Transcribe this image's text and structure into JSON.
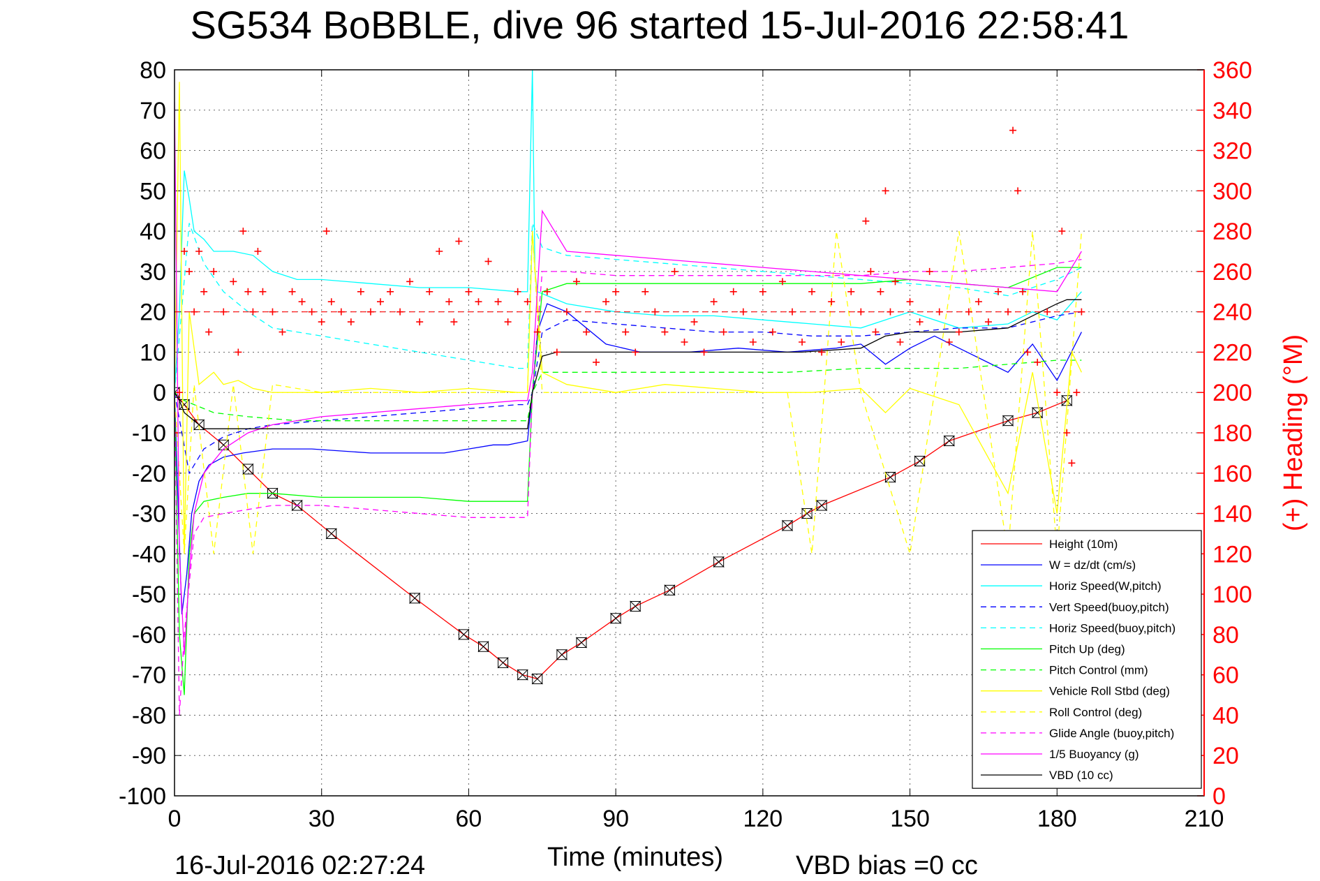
{
  "chart_data": {
    "type": "line",
    "title": "SG534 BoBBLE, dive 96 started 15-Jul-2016 22:58:41",
    "xlabel": "Time (minutes)",
    "ylabel": "",
    "y2label": "(+) Heading (°M)",
    "xlim": [
      0,
      210
    ],
    "ylim": [
      -100,
      80
    ],
    "y2lim": [
      0,
      360
    ],
    "xticks": [
      "0",
      "30",
      "60",
      "90",
      "120",
      "150",
      "180",
      "210"
    ],
    "yticks": [
      "80",
      "70",
      "60",
      "50",
      "40",
      "30",
      "20",
      "10",
      "0",
      "-10",
      "-20",
      "-30",
      "-40",
      "-50",
      "-60",
      "-70",
      "-80",
      "-90",
      "-100"
    ],
    "y2ticks": [
      "360",
      "340",
      "320",
      "300",
      "280",
      "260",
      "240",
      "220",
      "200",
      "180",
      "160",
      "140",
      "120",
      "100",
      "80",
      "60",
      "40",
      "20",
      "0"
    ],
    "grid": true,
    "legend_position": "bottom-right",
    "bottom_left_text": "16-Jul-2016 02:27:24",
    "bottom_right_text": "VBD bias =0 cc",
    "series": [
      {
        "name": "Height (10m)",
        "color": "#ff0000",
        "style": "solid",
        "marker": "hourglass",
        "x": [
          0,
          2,
          5,
          10,
          15,
          20,
          25,
          32,
          49,
          59,
          63,
          67,
          71,
          74,
          79,
          83,
          90,
          94,
          101,
          111,
          125,
          129,
          132,
          146,
          152,
          158,
          170,
          176,
          182
        ],
        "y": [
          0,
          -3,
          -8,
          -13,
          -19,
          -25,
          -28,
          -35,
          -51,
          -60,
          -63,
          -67,
          -70,
          -71,
          -65,
          -62,
          -56,
          -53,
          -49,
          -42,
          -33,
          -30,
          -28,
          -21,
          -17,
          -12,
          -7,
          -5,
          -2
        ]
      },
      {
        "name": "W = dz/dt (cm/s)",
        "color": "#0000ff",
        "style": "solid",
        "x": [
          0,
          0.8,
          1.5,
          2.5,
          3.5,
          5,
          7,
          10,
          14,
          20,
          28,
          40,
          55,
          60,
          65,
          68,
          72,
          73,
          74,
          76,
          80,
          88,
          95,
          105,
          115,
          125,
          135,
          140,
          145,
          150,
          155,
          160,
          165,
          170,
          175,
          180,
          185
        ],
        "y": [
          0,
          -30,
          -55,
          -45,
          -30,
          -22,
          -18,
          -16,
          -15,
          -14,
          -14,
          -15,
          -15,
          -14,
          -13,
          -13,
          -12,
          0,
          15,
          22,
          20,
          12,
          10,
          10,
          11,
          10,
          11,
          12,
          7,
          11,
          14,
          11,
          8,
          5,
          12,
          3,
          15
        ]
      },
      {
        "name": "Horiz Speed(W,pitch)",
        "color": "#00ffff",
        "style": "solid",
        "x": [
          0,
          1,
          2,
          3,
          4,
          6,
          8,
          12,
          16,
          20,
          25,
          30,
          40,
          50,
          60,
          70,
          72,
          73,
          73.5,
          74,
          76,
          80,
          90,
          100,
          110,
          120,
          130,
          140,
          150,
          160,
          170,
          175,
          180,
          185
        ],
        "y": [
          0,
          20,
          55,
          48,
          40,
          38,
          35,
          35,
          34,
          30,
          28,
          28,
          27,
          26,
          26,
          25,
          25,
          80,
          30,
          25,
          24,
          22,
          20,
          19,
          19,
          18,
          17,
          16,
          20,
          16,
          17,
          20,
          18,
          25
        ]
      },
      {
        "name": "Vert Speed(buoy,pitch)",
        "color": "#0000ff",
        "style": "dashed",
        "x": [
          0,
          3,
          6,
          10,
          15,
          20,
          30,
          40,
          50,
          60,
          70,
          72,
          73,
          75,
          80,
          90,
          100,
          110,
          120,
          130,
          140,
          150,
          160,
          170,
          180,
          185
        ],
        "y": [
          0,
          -20,
          -14,
          -11,
          -9,
          -8,
          -7,
          -6,
          -5,
          -4,
          -3,
          -3,
          0,
          15,
          18,
          17,
          16,
          15,
          15,
          14,
          14,
          15,
          16,
          16,
          19,
          20
        ]
      },
      {
        "name": "Horiz Speed(buoy,pitch)",
        "color": "#00ffff",
        "style": "dashed",
        "x": [
          0,
          3,
          6,
          10,
          15,
          20,
          30,
          40,
          50,
          60,
          70,
          72,
          73,
          75,
          80,
          90,
          100,
          110,
          120,
          130,
          140,
          150,
          160,
          170,
          180,
          185
        ],
        "y": [
          0,
          42,
          32,
          25,
          20,
          16,
          14,
          12,
          10,
          8,
          6,
          6,
          42,
          36,
          34,
          33,
          32,
          31,
          30,
          29,
          28,
          27,
          26,
          24,
          28,
          31
        ]
      },
      {
        "name": "Pitch Up (deg)",
        "color": "#00ff00",
        "style": "solid",
        "x": [
          0,
          1,
          2,
          3,
          4,
          6,
          10,
          15,
          20,
          30,
          40,
          50,
          60,
          70,
          72,
          73,
          75,
          80,
          90,
          100,
          110,
          120,
          130,
          140,
          150,
          160,
          170,
          180,
          185
        ],
        "y": [
          0,
          -60,
          -75,
          -40,
          -30,
          -27,
          -26,
          -25,
          -25,
          -26,
          -26,
          -26,
          -27,
          -27,
          -27,
          0,
          25,
          27,
          27,
          27,
          27,
          27,
          27,
          27,
          28,
          27,
          26,
          31,
          31
        ]
      },
      {
        "name": "Pitch Control (mm)",
        "color": "#00ff00",
        "style": "dashed",
        "x": [
          0,
          2,
          4,
          8,
          15,
          25,
          40,
          55,
          70,
          72,
          73,
          75,
          80,
          95,
          110,
          125,
          140,
          150,
          160,
          170,
          180,
          185
        ],
        "y": [
          0,
          -2,
          -3,
          -5,
          -6,
          -7,
          -7,
          -7,
          -7,
          -7,
          0,
          5,
          5,
          5,
          5,
          5,
          6,
          6,
          6,
          7,
          8,
          8
        ]
      },
      {
        "name": "Vehicle Roll Stbd (deg)",
        "color": "#ffff00",
        "style": "solid",
        "x": [
          0,
          1,
          2,
          3,
          5,
          8,
          10,
          13,
          16,
          20,
          30,
          40,
          50,
          60,
          70,
          72,
          73,
          75,
          80,
          90,
          100,
          110,
          120,
          130,
          140,
          145,
          150,
          160,
          170,
          175,
          180,
          183,
          185
        ],
        "y": [
          0,
          77,
          -40,
          20,
          2,
          5,
          2,
          3,
          1,
          0,
          0,
          1,
          0,
          1,
          0,
          0,
          40,
          5,
          2,
          0,
          2,
          1,
          0,
          0,
          1,
          -5,
          1,
          -3,
          -25,
          5,
          -30,
          10,
          5
        ]
      },
      {
        "name": "Roll Control (deg)",
        "color": "#ffff00",
        "style": "dashed",
        "x": [
          0,
          2,
          4,
          8,
          12,
          16,
          20,
          30,
          45,
          60,
          70,
          72,
          73,
          75,
          80,
          95,
          110,
          125,
          130,
          135,
          140,
          150,
          160,
          170,
          175,
          180,
          185
        ],
        "y": [
          0,
          -40,
          2,
          -40,
          2,
          -40,
          2,
          0,
          0,
          0,
          0,
          0,
          40,
          0,
          0,
          0,
          0,
          0,
          -40,
          40,
          0,
          -40,
          40,
          -40,
          40,
          -40,
          40
        ]
      },
      {
        "name": "Glide Angle (buoy,pitch)",
        "color": "#ff00ff",
        "style": "dashed",
        "x": [
          0,
          1,
          2,
          4,
          6,
          10,
          15,
          20,
          30,
          40,
          50,
          60,
          70,
          72,
          73,
          75,
          80,
          90,
          100,
          110,
          120,
          130,
          140,
          150,
          160,
          170,
          180,
          185
        ],
        "y": [
          0,
          -80,
          -60,
          -35,
          -31,
          -30,
          -29,
          -28,
          -28,
          -29,
          -30,
          -31,
          -31,
          -31,
          0,
          30,
          30,
          29,
          29,
          29,
          29,
          29,
          29,
          30,
          30,
          31,
          32,
          33
        ]
      },
      {
        "name": "1/5 Buoyancy (g)",
        "color": "#ff00ff",
        "style": "solid",
        "x": [
          0,
          1,
          2,
          3,
          4,
          6,
          10,
          15,
          20,
          30,
          40,
          50,
          60,
          70,
          72,
          73,
          75,
          80,
          90,
          100,
          110,
          120,
          130,
          140,
          150,
          160,
          170,
          180,
          185
        ],
        "y": [
          72,
          -40,
          -65,
          -45,
          -30,
          -20,
          -14,
          -10,
          -8,
          -6,
          -5,
          -4,
          -3,
          -2,
          -2,
          5,
          45,
          35,
          34,
          33,
          32,
          31,
          30,
          29,
          28,
          27,
          26,
          25,
          35
        ]
      },
      {
        "name": "VBD (10 cc)",
        "color": "#000000",
        "style": "solid",
        "x": [
          0,
          1,
          2,
          6,
          10,
          20,
          30,
          45,
          60,
          70,
          72,
          73,
          75,
          78,
          80,
          85,
          95,
          110,
          125,
          128,
          140,
          145,
          150,
          160,
          170,
          180,
          182,
          185
        ],
        "y": [
          0,
          -2,
          -5,
          -9,
          -9,
          -9,
          -9,
          -9,
          -9,
          -9,
          -9,
          0,
          9,
          10,
          10,
          10,
          10,
          10,
          10,
          10,
          11,
          14,
          15,
          15,
          16,
          22,
          23,
          23
        ]
      },
      {
        "name": "Heading (+)",
        "color": "#ff0000",
        "style": "markers",
        "marker": "plus",
        "axis": "right",
        "x": [
          0,
          1,
          2,
          3,
          4,
          5,
          6,
          7,
          8,
          10,
          12,
          13,
          14,
          15,
          16,
          17,
          18,
          20,
          22,
          24,
          26,
          28,
          30,
          31,
          32,
          34,
          36,
          38,
          40,
          42,
          44,
          46,
          48,
          50,
          52,
          54,
          56,
          57,
          58,
          60,
          62,
          64,
          66,
          68,
          70,
          72,
          74,
          76,
          78,
          80,
          82,
          84,
          86,
          88,
          90,
          92,
          94,
          96,
          98,
          100,
          102,
          104,
          106,
          108,
          110,
          112,
          114,
          116,
          118,
          120,
          122,
          124,
          126,
          128,
          130,
          132,
          134,
          136,
          138,
          140,
          141,
          142,
          143,
          144,
          145,
          146,
          147,
          148,
          150,
          152,
          154,
          156,
          158,
          160,
          162,
          164,
          166,
          168,
          170,
          171,
          172,
          173,
          174,
          176,
          178,
          180,
          181,
          182,
          183,
          184,
          185
        ],
        "y": [
          180,
          200,
          270,
          260,
          240,
          270,
          250,
          230,
          260,
          240,
          255,
          220,
          280,
          250,
          240,
          270,
          250,
          240,
          230,
          250,
          245,
          240,
          235,
          280,
          245,
          240,
          235,
          250,
          240,
          245,
          250,
          240,
          255,
          235,
          250,
          270,
          245,
          235,
          275,
          250,
          245,
          265,
          245,
          235,
          250,
          245,
          230,
          250,
          220,
          240,
          255,
          230,
          215,
          245,
          250,
          230,
          220,
          250,
          240,
          230,
          260,
          225,
          235,
          220,
          245,
          230,
          250,
          240,
          225,
          250,
          230,
          255,
          240,
          225,
          250,
          220,
          245,
          225,
          250,
          240,
          285,
          260,
          230,
          250,
          300,
          240,
          255,
          225,
          245,
          235,
          260,
          240,
          225,
          230,
          240,
          245,
          235,
          250,
          240,
          330,
          300,
          250,
          220,
          215,
          240,
          200,
          280,
          180,
          165,
          200,
          240
        ]
      }
    ]
  }
}
